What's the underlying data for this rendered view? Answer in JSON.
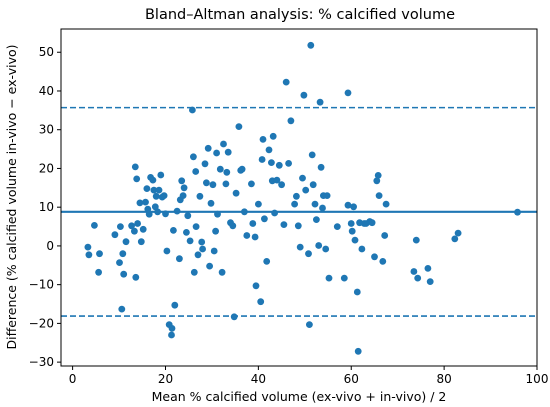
{
  "chart_data": {
    "type": "scatter",
    "title": "Bland–Altman analysis: % calcified volume",
    "xlabel": "Mean % calcified volume (ex-vivo + in-vivo) / 2",
    "ylabel": "Difference (% calcified volume in-vivo − ex-vivo)",
    "xlim": [
      -2.5,
      100
    ],
    "ylim": [
      -31,
      56
    ],
    "xticks": [
      0,
      20,
      40,
      60,
      80,
      100
    ],
    "yticks": [
      -30,
      -20,
      -10,
      0,
      10,
      20,
      30,
      40,
      50
    ],
    "grid": false,
    "reference_lines": {
      "mean_difference": 8.8,
      "upper_limit": 35.7,
      "lower_limit": -18.1
    },
    "colors": {
      "points": "#1f77b4",
      "lines": "#1f77b4"
    },
    "points": [
      [
        3.3,
        -0.3
      ],
      [
        3.5,
        -2.3
      ],
      [
        4.7,
        5.3
      ],
      [
        5.8,
        -2.0
      ],
      [
        5.6,
        -6.8
      ],
      [
        9.1,
        2.9
      ],
      [
        10.1,
        -4.3
      ],
      [
        10.3,
        5.0
      ],
      [
        10.6,
        -16.3
      ],
      [
        10.8,
        -2.0
      ],
      [
        11.0,
        -7.3
      ],
      [
        11.5,
        1.1
      ],
      [
        12.7,
        5.2
      ],
      [
        13.3,
        3.8
      ],
      [
        13.6,
        -8.1
      ],
      [
        13.5,
        20.4
      ],
      [
        13.8,
        17.3
      ],
      [
        14.0,
        5.8
      ],
      [
        14.5,
        11.1
      ],
      [
        14.8,
        1.1
      ],
      [
        15.2,
        4.3
      ],
      [
        15.7,
        11.3
      ],
      [
        16.0,
        14.8
      ],
      [
        16.2,
        9.5
      ],
      [
        16.5,
        8.2
      ],
      [
        16.8,
        17.7
      ],
      [
        17.3,
        17.0
      ],
      [
        17.5,
        14.4
      ],
      [
        17.8,
        10.1
      ],
      [
        18.0,
        12.8
      ],
      [
        18.3,
        8.8
      ],
      [
        18.6,
        14.4
      ],
      [
        19.0,
        18.3
      ],
      [
        19.3,
        12.6
      ],
      [
        19.7,
        13.0
      ],
      [
        20.0,
        8.3
      ],
      [
        20.3,
        -1.3
      ],
      [
        20.8,
        -20.3
      ],
      [
        21.3,
        -23.0
      ],
      [
        21.4,
        -21.3
      ],
      [
        21.7,
        4.0
      ],
      [
        22.0,
        -15.3
      ],
      [
        22.5,
        9.0
      ],
      [
        23.0,
        -3.3
      ],
      [
        23.2,
        11.9
      ],
      [
        23.5,
        16.8
      ],
      [
        23.8,
        13.0
      ],
      [
        24.0,
        15.0
      ],
      [
        24.5,
        3.5
      ],
      [
        24.8,
        7.8
      ],
      [
        25.3,
        1.3
      ],
      [
        25.8,
        35.1
      ],
      [
        26.0,
        23.0
      ],
      [
        26.2,
        -6.8
      ],
      [
        26.5,
        19.2
      ],
      [
        26.6,
        5.0
      ],
      [
        27.0,
        -2.3
      ],
      [
        27.4,
        12.8
      ],
      [
        27.8,
        1.0
      ],
      [
        28.0,
        -0.8
      ],
      [
        28.5,
        21.2
      ],
      [
        28.8,
        16.3
      ],
      [
        29.2,
        25.2
      ],
      [
        29.5,
        -5.2
      ],
      [
        29.8,
        11.0
      ],
      [
        30.2,
        15.8
      ],
      [
        30.5,
        -1.3
      ],
      [
        30.8,
        3.8
      ],
      [
        31.0,
        24.0
      ],
      [
        31.2,
        8.2
      ],
      [
        31.8,
        19.8
      ],
      [
        32.2,
        -6.8
      ],
      [
        32.5,
        26.3
      ],
      [
        33.0,
        16.0
      ],
      [
        33.2,
        19.0
      ],
      [
        33.5,
        24.2
      ],
      [
        34.0,
        6.0
      ],
      [
        34.5,
        5.2
      ],
      [
        34.8,
        -18.3
      ],
      [
        35.2,
        13.6
      ],
      [
        35.8,
        30.8
      ],
      [
        36.2,
        19.5
      ],
      [
        36.5,
        19.8
      ],
      [
        37.0,
        8.8
      ],
      [
        37.5,
        2.7
      ],
      [
        38.5,
        16.0
      ],
      [
        38.8,
        5.8
      ],
      [
        39.3,
        2.3
      ],
      [
        39.5,
        -10.3
      ],
      [
        40.0,
        10.8
      ],
      [
        40.5,
        -14.4
      ],
      [
        40.8,
        22.3
      ],
      [
        41.0,
        27.5
      ],
      [
        41.3,
        7.0
      ],
      [
        41.8,
        -4.0
      ],
      [
        42.3,
        24.8
      ],
      [
        42.8,
        21.5
      ],
      [
        43.0,
        16.8
      ],
      [
        43.2,
        28.3
      ],
      [
        43.5,
        8.5
      ],
      [
        44.0,
        17.0
      ],
      [
        44.5,
        20.8
      ],
      [
        45.0,
        15.8
      ],
      [
        45.5,
        5.5
      ],
      [
        46.0,
        42.3
      ],
      [
        46.5,
        21.3
      ],
      [
        47.0,
        32.3
      ],
      [
        47.8,
        10.8
      ],
      [
        48.2,
        12.8
      ],
      [
        48.6,
        5.2
      ],
      [
        49.0,
        -0.3
      ],
      [
        49.5,
        17.5
      ],
      [
        49.8,
        38.9
      ],
      [
        50.2,
        14.4
      ],
      [
        50.8,
        -2.0
      ],
      [
        51.0,
        -20.3
      ],
      [
        51.3,
        51.8
      ],
      [
        51.6,
        23.5
      ],
      [
        51.8,
        15.8
      ],
      [
        52.2,
        10.8
      ],
      [
        52.5,
        6.8
      ],
      [
        53.0,
        0.1
      ],
      [
        53.3,
        37.1
      ],
      [
        53.5,
        20.3
      ],
      [
        53.8,
        9.8
      ],
      [
        54.0,
        13.0
      ],
      [
        54.5,
        -0.8
      ],
      [
        54.8,
        13.0
      ],
      [
        55.2,
        -8.3
      ],
      [
        57.0,
        5.0
      ],
      [
        58.5,
        -8.3
      ],
      [
        59.3,
        39.5
      ],
      [
        59.3,
        10.5
      ],
      [
        60.0,
        5.8
      ],
      [
        60.2,
        3.8
      ],
      [
        60.5,
        10.1
      ],
      [
        60.8,
        1.5
      ],
      [
        61.3,
        -11.9
      ],
      [
        61.5,
        -27.2
      ],
      [
        61.8,
        6.0
      ],
      [
        62.3,
        -0.8
      ],
      [
        62.8,
        5.8
      ],
      [
        63.2,
        5.8
      ],
      [
        64.0,
        6.3
      ],
      [
        64.5,
        6.0
      ],
      [
        65.0,
        -2.8
      ],
      [
        65.5,
        16.8
      ],
      [
        65.8,
        18.2
      ],
      [
        66.0,
        13.0
      ],
      [
        66.8,
        -4.0
      ],
      [
        67.2,
        2.7
      ],
      [
        67.5,
        10.8
      ],
      [
        73.5,
        -6.6
      ],
      [
        74.0,
        1.5
      ],
      [
        74.3,
        -8.3
      ],
      [
        76.5,
        -5.8
      ],
      [
        77.0,
        -9.2
      ],
      [
        82.3,
        1.8
      ],
      [
        83.0,
        3.3
      ],
      [
        95.8,
        8.7
      ]
    ]
  }
}
